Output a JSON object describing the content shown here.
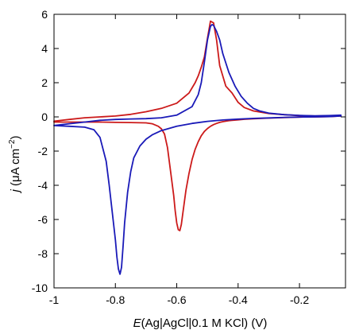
{
  "chart_data": {
    "type": "line",
    "title": "",
    "xlabel_parts": [
      "E",
      "(Ag|AgCl|0.1 M KCl)  (V)"
    ],
    "ylabel_parts": [
      "j",
      "  (",
      "μ",
      "A cm",
      "−2",
      ")"
    ],
    "xlim": [
      -1.0,
      -0.05
    ],
    "ylim": [
      -10,
      6
    ],
    "xticks": [
      -1,
      -0.8,
      -0.6,
      -0.4,
      -0.2
    ],
    "xtick_labels": [
      "-1",
      "-0.8",
      "-0.6",
      "-0.4",
      "-0.2"
    ],
    "yticks": [
      -10,
      -8,
      -6,
      -4,
      -2,
      0,
      2,
      4,
      6
    ],
    "ytick_labels": [
      "-10",
      "-8",
      "-6",
      "-4",
      "-2",
      "0",
      "2",
      "4",
      "6"
    ],
    "grid": false,
    "legend": "none",
    "series": [
      {
        "color": "#cc1a1a",
        "x": [
          -1.0,
          -0.95,
          -0.9,
          -0.85,
          -0.8,
          -0.75,
          -0.7,
          -0.68,
          -0.66,
          -0.65,
          -0.64,
          -0.63,
          -0.62,
          -0.61,
          -0.605,
          -0.6,
          -0.595,
          -0.59,
          -0.585,
          -0.58,
          -0.57,
          -0.56,
          -0.55,
          -0.54,
          -0.53,
          -0.52,
          -0.51,
          -0.5,
          -0.49,
          -0.48,
          -0.47,
          -0.46,
          -0.45,
          -0.44,
          -0.43,
          -0.42,
          -0.4,
          -0.38,
          -0.35,
          -0.3,
          -0.25,
          -0.2,
          -0.15,
          -0.1,
          -0.065,
          -0.065,
          -0.1,
          -0.15,
          -0.2,
          -0.25,
          -0.3,
          -0.35,
          -0.38,
          -0.4,
          -0.42,
          -0.44,
          -0.46,
          -0.47,
          -0.48,
          -0.49,
          -0.5,
          -0.51,
          -0.52,
          -0.53,
          -0.54,
          -0.56,
          -0.6,
          -0.65,
          -0.7,
          -0.75,
          -0.8,
          -0.85,
          -0.9,
          -0.95,
          -1.0
        ],
        "y": [
          -0.3,
          -0.3,
          -0.3,
          -0.3,
          -0.32,
          -0.33,
          -0.35,
          -0.4,
          -0.55,
          -0.7,
          -1.0,
          -1.8,
          -3.2,
          -4.6,
          -5.5,
          -6.2,
          -6.6,
          -6.65,
          -6.3,
          -5.6,
          -4.3,
          -3.3,
          -2.5,
          -1.9,
          -1.45,
          -1.1,
          -0.85,
          -0.68,
          -0.55,
          -0.45,
          -0.38,
          -0.32,
          -0.28,
          -0.25,
          -0.22,
          -0.2,
          -0.17,
          -0.14,
          -0.11,
          -0.07,
          -0.04,
          -0.01,
          0.0,
          0.02,
          0.05,
          0.08,
          0.06,
          0.05,
          0.08,
          0.13,
          0.2,
          0.35,
          0.55,
          0.85,
          1.4,
          1.8,
          3.0,
          4.5,
          5.5,
          5.6,
          4.6,
          3.5,
          2.9,
          2.4,
          2.0,
          1.4,
          0.8,
          0.5,
          0.3,
          0.15,
          0.05,
          0.0,
          -0.05,
          -0.15,
          -0.25
        ]
      },
      {
        "color": "#1a1ab8",
        "x": [
          -1.0,
          -0.95,
          -0.9,
          -0.87,
          -0.85,
          -0.83,
          -0.82,
          -0.81,
          -0.8,
          -0.795,
          -0.79,
          -0.785,
          -0.78,
          -0.775,
          -0.77,
          -0.76,
          -0.75,
          -0.74,
          -0.72,
          -0.7,
          -0.68,
          -0.65,
          -0.6,
          -0.55,
          -0.5,
          -0.45,
          -0.4,
          -0.35,
          -0.3,
          -0.25,
          -0.2,
          -0.15,
          -0.1,
          -0.065,
          -0.065,
          -0.1,
          -0.15,
          -0.2,
          -0.25,
          -0.3,
          -0.33,
          -0.35,
          -0.37,
          -0.39,
          -0.41,
          -0.43,
          -0.45,
          -0.46,
          -0.47,
          -0.48,
          -0.485,
          -0.49,
          -0.5,
          -0.51,
          -0.52,
          -0.53,
          -0.55,
          -0.6,
          -0.65,
          -0.7,
          -0.75,
          -0.8,
          -0.85,
          -0.9,
          -0.95,
          -1.0
        ],
        "y": [
          -0.5,
          -0.55,
          -0.6,
          -0.75,
          -1.2,
          -2.6,
          -4.0,
          -5.6,
          -7.2,
          -8.2,
          -8.9,
          -9.2,
          -8.8,
          -7.6,
          -6.2,
          -4.4,
          -3.2,
          -2.4,
          -1.7,
          -1.3,
          -1.05,
          -0.8,
          -0.55,
          -0.38,
          -0.26,
          -0.18,
          -0.13,
          -0.09,
          -0.06,
          -0.03,
          -0.01,
          0.0,
          0.02,
          0.05,
          0.1,
          0.08,
          0.06,
          0.09,
          0.13,
          0.22,
          0.35,
          0.5,
          0.8,
          1.2,
          1.8,
          2.6,
          3.7,
          4.5,
          5.0,
          5.35,
          5.4,
          5.3,
          4.5,
          3.2,
          2.0,
          1.3,
          0.6,
          0.1,
          -0.05,
          -0.1,
          -0.12,
          -0.15,
          -0.2,
          -0.3,
          -0.4,
          -0.5
        ]
      }
    ]
  }
}
